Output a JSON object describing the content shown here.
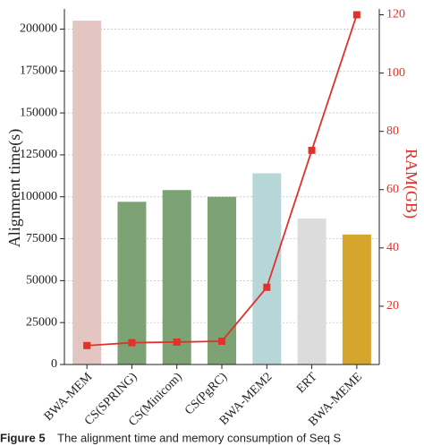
{
  "chart_data": {
    "type": "bar_line",
    "y_label": "Alignment time(s)",
    "y2_label": "RAM(GB)",
    "categories": [
      "BWA-MEM",
      "CS(SPRING)",
      "CS(Minicom)",
      "CS(PgRC)",
      "BWA-MEM2",
      "ERT",
      "BWA-MEME"
    ],
    "values": [
      205000,
      97000,
      104000,
      100000,
      114000,
      87000,
      77500
    ],
    "colors": [
      "#e3c6c2",
      "#7da274",
      "#7da274",
      "#7da274",
      "#b7d6d8",
      "#dcdcdc",
      "#d6a52b"
    ],
    "line_values": [
      6.5,
      7.5,
      7.7,
      8,
      26.5,
      73.5,
      120
    ],
    "line_color": "#e0312b",
    "ylim": [
      0,
      212000
    ],
    "yticks": [
      0,
      25000,
      50000,
      75000,
      100000,
      125000,
      150000,
      175000,
      200000
    ],
    "y2lim": [
      0,
      122
    ],
    "y2ticks": [
      20,
      40,
      60,
      80,
      100,
      120
    ],
    "grid": true,
    "caption_label": "Figure 5",
    "caption": "The alignment time and memory consumption of Seq S"
  }
}
